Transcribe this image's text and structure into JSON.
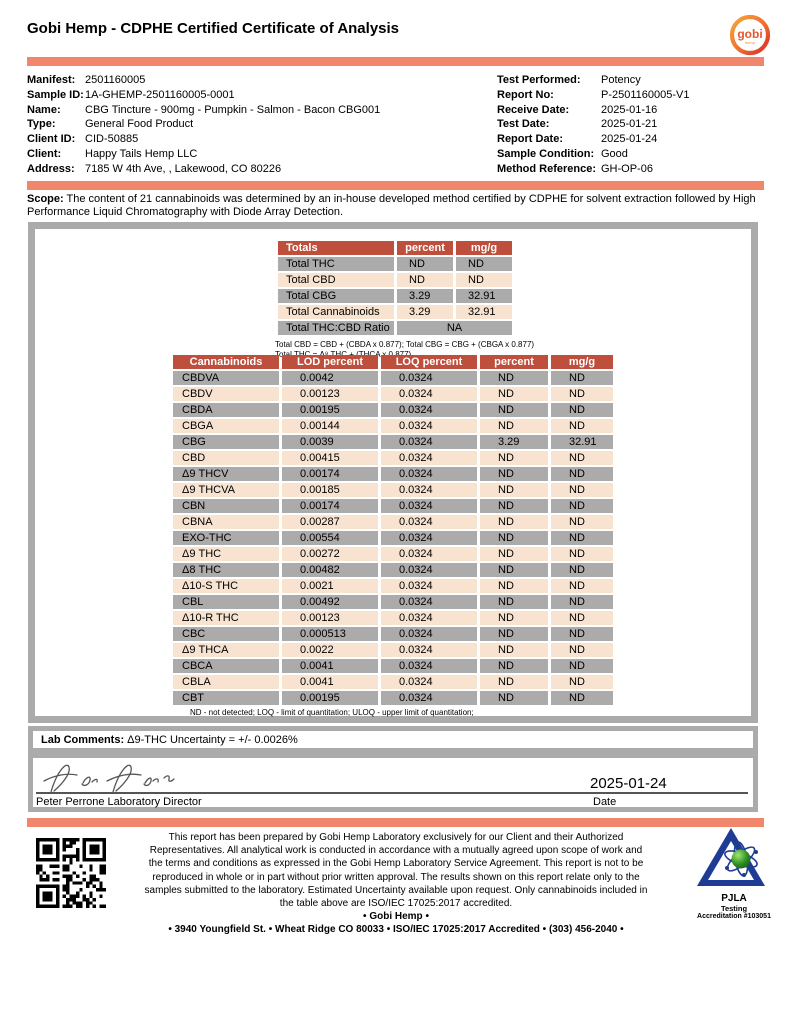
{
  "header": {
    "title": "Gobi Hemp - CDPHE Certified Certificate of Analysis",
    "logo_text": "gobi",
    "logo_sub": "hemp"
  },
  "colors": {
    "accent_bar": "#F0876C",
    "table_header": "#BE4F3C",
    "row_gray": "#ABABAB",
    "row_peach": "#F8E3D0",
    "border_gray": "#ABABAB"
  },
  "info_left": [
    {
      "label": "Manifest:",
      "value": "2501160005"
    },
    {
      "label": "Sample ID:",
      "value": "1A-GHEMP-2501160005-0001"
    },
    {
      "label": "Name:",
      "value": "CBG Tincture - 900mg - Pumpkin - Salmon - Bacon CBG001"
    },
    {
      "label": "Type:",
      "value": "General Food Product"
    },
    {
      "label": "Client ID:",
      "value": "CID-50885"
    },
    {
      "label": "Client:",
      "value": "Happy Tails Hemp LLC"
    },
    {
      "label": "Address:",
      "value": "7185 W 4th Ave, , Lakewood, CO 80226"
    }
  ],
  "info_right": [
    {
      "label": "Test Performed:",
      "value": "Potency"
    },
    {
      "label": "Report No:",
      "value": "P-2501160005-V1"
    },
    {
      "label": "Receive Date:",
      "value": "2025-01-16"
    },
    {
      "label": "Test Date:",
      "value": "2025-01-21"
    },
    {
      "label": "Report Date:",
      "value": "2025-01-24"
    },
    {
      "label": "Sample Condition:",
      "value": "Good"
    },
    {
      "label": "Method Reference:",
      "value": "GH-OP-06"
    }
  ],
  "scope": {
    "label": "Scope:",
    "text": " The content of 21 cannabinoids was determined by an in-house developed method certified by CDPHE for solvent extraction followed by High Performance Liquid Chromatography with Diode Array Detection."
  },
  "totals_table": {
    "header": [
      "Totals",
      "percent",
      "mg/g"
    ],
    "rows": [
      [
        "Total THC",
        "ND",
        "ND"
      ],
      [
        "Total CBD",
        "ND",
        "ND"
      ],
      [
        "Total CBG",
        "3.29",
        "32.91"
      ],
      [
        "Total Cannabinoids",
        "3.29",
        "32.91"
      ],
      [
        "Total THC:CBD Ratio",
        "NA",
        "@span"
      ]
    ],
    "note1": "Total CBD = CBD + (CBDA x 0.877); Total CBG = CBG + (CBGA x 0.877)",
    "note2": "Total THC = Δ⁹ THC + (THCA x 0.877)"
  },
  "cannabinoid_table": {
    "header": [
      "Cannabinoids",
      "LOD percent",
      "LOQ percent",
      "percent",
      "mg/g"
    ],
    "rows": [
      [
        "CBDVA",
        "0.0042",
        "0.0324",
        "ND",
        "ND"
      ],
      [
        "CBDV",
        "0.00123",
        "0.0324",
        "ND",
        "ND"
      ],
      [
        "CBDA",
        "0.00195",
        "0.0324",
        "ND",
        "ND"
      ],
      [
        "CBGA",
        "0.00144",
        "0.0324",
        "ND",
        "ND"
      ],
      [
        "CBG",
        "0.0039",
        "0.0324",
        "3.29",
        "32.91"
      ],
      [
        "CBD",
        "0.00415",
        "0.0324",
        "ND",
        "ND"
      ],
      [
        "Δ9 THCV",
        "0.00174",
        "0.0324",
        "ND",
        "ND"
      ],
      [
        "Δ9 THCVA",
        "0.00185",
        "0.0324",
        "ND",
        "ND"
      ],
      [
        "CBN",
        "0.00174",
        "0.0324",
        "ND",
        "ND"
      ],
      [
        "CBNA",
        "0.00287",
        "0.0324",
        "ND",
        "ND"
      ],
      [
        "EXO-THC",
        "0.00554",
        "0.0324",
        "ND",
        "ND"
      ],
      [
        "Δ9 THC",
        "0.00272",
        "0.0324",
        "ND",
        "ND"
      ],
      [
        "Δ8 THC",
        "0.00482",
        "0.0324",
        "ND",
        "ND"
      ],
      [
        "Δ10-S THC",
        "0.0021",
        "0.0324",
        "ND",
        "ND"
      ],
      [
        "CBL",
        "0.00492",
        "0.0324",
        "ND",
        "ND"
      ],
      [
        "Δ10-R THC",
        "0.00123",
        "0.0324",
        "ND",
        "ND"
      ],
      [
        "CBC",
        "0.000513",
        "0.0324",
        "ND",
        "ND"
      ],
      [
        "Δ9 THCA",
        "0.0022",
        "0.0324",
        "ND",
        "ND"
      ],
      [
        "CBCA",
        "0.0041",
        "0.0324",
        "ND",
        "ND"
      ],
      [
        "CBLA",
        "0.0041",
        "0.0324",
        "ND",
        "ND"
      ],
      [
        "CBT",
        "0.00195",
        "0.0324",
        "ND",
        "ND"
      ]
    ],
    "footnote": "ND - not detected; LOQ - limit of quantitation; ULOQ - upper limit of quantitation;"
  },
  "lab_comments": {
    "label": "Lab Comments:",
    "text": " Δ9-THC Uncertainty = +/- 0.0026%"
  },
  "signature": {
    "name_title": "Peter Perrone Laboratory Director",
    "date_value": "2025-01-24",
    "date_label": "Date"
  },
  "footer": {
    "disclaimer": "This report has been prepared by Gobi Hemp Laboratory exclusively for our Client and their Authorized Representatives. All analytical work is conducted in accordance with a mutually agreed upon scope of work and the terms and conditions as expressed in the Gobi Hemp Laboratory Service Agreement. This report is not to be reproduced in whole or in part without prior written approval. The results shown on this report relate only to the samples submitted to the laboratory. Estimated Uncertainty available upon request. Only cannabinoids included in the table above are ISO/IEC 17025:2017 accredited.",
    "line1": "• Gobi Hemp •",
    "line2": "• 3940 Youngfield St. • Wheat Ridge CO 80033 • ISO/IEC 17025:2017 Accredited • (303) 456-2040 •",
    "pjla": {
      "name": "PJLA",
      "sub": "Testing",
      "accreditation": "Accreditation #103051"
    }
  }
}
